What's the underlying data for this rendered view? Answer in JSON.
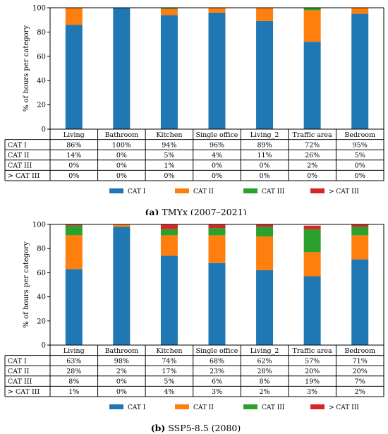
{
  "chart_data": [
    {
      "type": "bar",
      "stacked": true,
      "caption_letter": "(a)",
      "caption_text": "TMYx (2007–2021)",
      "ylabel": "% of hours per category",
      "ylim": [
        0,
        100
      ],
      "yticks": [
        "0",
        "20",
        "40",
        "60",
        "80",
        "100"
      ],
      "categories": [
        "Living",
        "Bathroom",
        "Kitchen",
        "Single office",
        "Living_2",
        "Traffic area",
        "Bedroom"
      ],
      "series": [
        {
          "name": "CAT I",
          "color": "#1f77b4",
          "values": [
            86,
            100,
            94,
            96,
            89,
            72,
            95
          ],
          "labels": [
            "86%",
            "100%",
            "94%",
            "96%",
            "89%",
            "72%",
            "95%"
          ]
        },
        {
          "name": "CAT II",
          "color": "#ff7f0e",
          "values": [
            14,
            0,
            5,
            4,
            11,
            26,
            5
          ],
          "labels": [
            "14%",
            "0%",
            "5%",
            "4%",
            "11%",
            "26%",
            "5%"
          ]
        },
        {
          "name": "CAT III",
          "color": "#2ca02c",
          "values": [
            0,
            0,
            1,
            0,
            0,
            2,
            0
          ],
          "labels": [
            "0%",
            "0%",
            "1%",
            "0%",
            "0%",
            "2%",
            "0%"
          ]
        },
        {
          "name": "> CAT III",
          "color": "#d62728",
          "values": [
            0,
            0,
            0,
            0,
            0,
            0,
            0
          ],
          "labels": [
            "0%",
            "0%",
            "0%",
            "0%",
            "0%",
            "0%",
            "0%"
          ]
        }
      ],
      "legend": "bottom"
    },
    {
      "type": "bar",
      "stacked": true,
      "caption_letter": "(b)",
      "caption_text": "SSP5-8.5 (2080)",
      "ylabel": "% of hours per category",
      "ylim": [
        0,
        100
      ],
      "yticks": [
        "0",
        "20",
        "40",
        "60",
        "80",
        "100"
      ],
      "categories": [
        "Living",
        "Bathroom",
        "Kitchen",
        "Single office",
        "Living_2",
        "Traffic area",
        "Bedroom"
      ],
      "series": [
        {
          "name": "CAT I",
          "color": "#1f77b4",
          "values": [
            63,
            98,
            74,
            68,
            62,
            57,
            71
          ],
          "labels": [
            "63%",
            "98%",
            "74%",
            "68%",
            "62%",
            "57%",
            "71%"
          ]
        },
        {
          "name": "CAT II",
          "color": "#ff7f0e",
          "values": [
            28,
            2,
            17,
            23,
            28,
            20,
            20
          ],
          "labels": [
            "28%",
            "2%",
            "17%",
            "23%",
            "28%",
            "20%",
            "20%"
          ]
        },
        {
          "name": "CAT III",
          "color": "#2ca02c",
          "values": [
            8,
            0,
            5,
            6,
            8,
            19,
            7
          ],
          "labels": [
            "8%",
            "0%",
            "5%",
            "6%",
            "8%",
            "19%",
            "7%"
          ]
        },
        {
          "name": "> CAT III",
          "color": "#d62728",
          "values": [
            1,
            0,
            4,
            3,
            2,
            3,
            2
          ],
          "labels": [
            "1%",
            "0%",
            "4%",
            "3%",
            "2%",
            "3%",
            "2%"
          ]
        }
      ],
      "legend": "bottom"
    }
  ]
}
